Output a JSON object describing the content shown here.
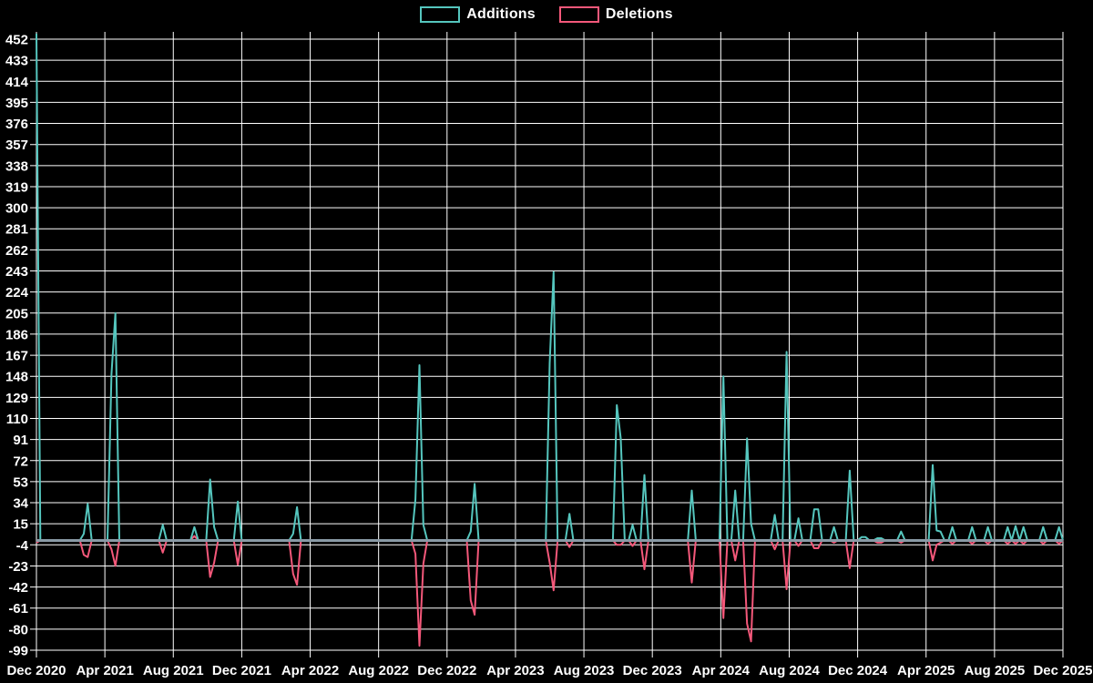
{
  "legend": {
    "items": [
      {
        "label": "Additions",
        "color": "#55c6be"
      },
      {
        "label": "Deletions",
        "color": "#f4587a"
      }
    ]
  },
  "chart_data": {
    "type": "line",
    "title": "",
    "xlabel": "",
    "ylabel": "",
    "x_tick_labels": [
      "Dec 2020",
      "Apr 2021",
      "Aug 2021",
      "Dec 2021",
      "Apr 2022",
      "Aug 2022",
      "Dec 2022",
      "Apr 2023",
      "Aug 2023",
      "Dec 2023",
      "Apr 2024",
      "Aug 2024",
      "Dec 2024",
      "Apr 2025",
      "Aug 2025",
      "Dec 2025"
    ],
    "y_tick_labels": [
      452,
      433,
      414,
      395,
      376,
      357,
      338,
      319,
      300,
      281,
      262,
      243,
      224,
      205,
      186,
      167,
      148,
      129,
      110,
      91,
      72,
      53,
      34,
      15,
      -4,
      -23,
      -42,
      -61,
      -80,
      -99
    ],
    "ylim": [
      -99,
      458
    ],
    "grid": true,
    "legend_position": "top-center",
    "x_unit": "weeks (Dec 2020 - Dec 2025)",
    "weeks_total": 261,
    "baseline_value": 0,
    "zero_line_color": "#8a9aa6",
    "grid_color": "#ffffff",
    "background_color": "#000000",
    "series": [
      {
        "name": "Additions",
        "color": "#55c6be"
      },
      {
        "name": "Deletions",
        "color": "#f4587a"
      }
    ],
    "point_format": [
      "week_index",
      "additions",
      "deletions"
    ],
    "note": "all weeks not listed have additions=0 and deletions=0",
    "points": [
      [
        0,
        457,
        -2
      ],
      [
        12,
        6,
        -13
      ],
      [
        13,
        33,
        -15
      ],
      [
        19,
        150,
        -8
      ],
      [
        20,
        205,
        -23
      ],
      [
        32,
        14,
        -11
      ],
      [
        40,
        12,
        4
      ],
      [
        44,
        55,
        -33
      ],
      [
        45,
        12,
        -20
      ],
      [
        51,
        35,
        -22
      ],
      [
        65,
        6,
        -30
      ],
      [
        66,
        30,
        -40
      ],
      [
        96,
        37,
        -12
      ],
      [
        97,
        158,
        -95
      ],
      [
        98,
        14,
        -21
      ],
      [
        110,
        8,
        -54
      ],
      [
        111,
        51,
        -67
      ],
      [
        130,
        160,
        -20
      ],
      [
        131,
        242,
        -45
      ],
      [
        135,
        24,
        -6
      ],
      [
        147,
        122,
        -4
      ],
      [
        148,
        92,
        -4
      ],
      [
        151,
        14,
        -5
      ],
      [
        154,
        59,
        -26
      ],
      [
        166,
        45,
        -38
      ],
      [
        174,
        148,
        -70
      ],
      [
        177,
        45,
        -18
      ],
      [
        180,
        92,
        -75
      ],
      [
        181,
        15,
        -91
      ],
      [
        187,
        23,
        -8
      ],
      [
        190,
        170,
        -44
      ],
      [
        193,
        20,
        -5
      ],
      [
        197,
        28,
        -7
      ],
      [
        198,
        28,
        -7
      ],
      [
        202,
        12,
        -2
      ],
      [
        206,
        63,
        -25
      ],
      [
        209,
        3,
        0
      ],
      [
        210,
        3,
        0
      ],
      [
        213,
        2,
        -2
      ],
      [
        214,
        2,
        -2
      ],
      [
        219,
        8,
        -2
      ],
      [
        227,
        68,
        -18
      ],
      [
        228,
        9,
        -4
      ],
      [
        229,
        8,
        -2
      ],
      [
        232,
        12,
        -3
      ],
      [
        237,
        12,
        -3
      ],
      [
        241,
        12,
        -3
      ],
      [
        246,
        12,
        -3
      ],
      [
        248,
        13,
        -3
      ],
      [
        250,
        12,
        -3
      ],
      [
        255,
        12,
        -3
      ],
      [
        259,
        12,
        -3
      ]
    ]
  }
}
